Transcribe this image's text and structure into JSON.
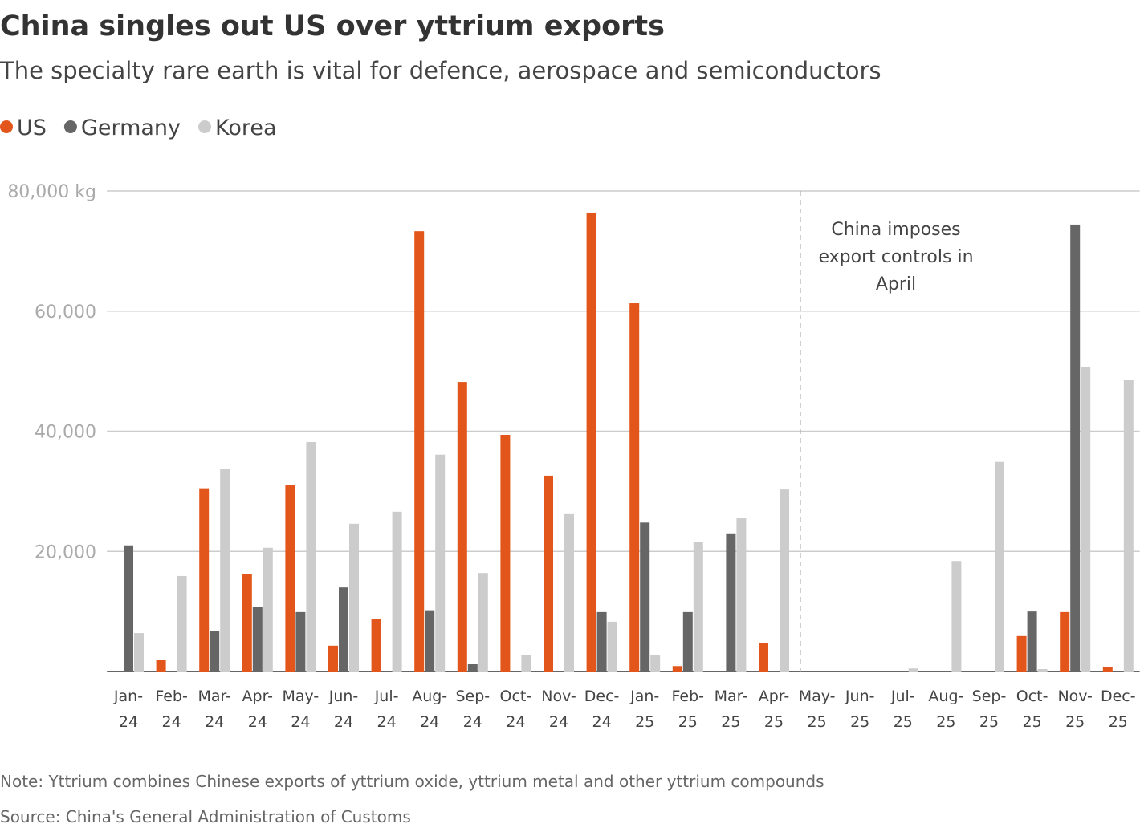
{
  "chart_data": {
    "type": "bar",
    "title": "China singles out US over yttrium exports",
    "subtitle": "The specialty rare earth is vital for defence, aerospace and semiconductors",
    "categories": [
      "Jan-24",
      "Feb-24",
      "Mar-24",
      "Apr-24",
      "May-24",
      "Jun-24",
      "Jul-24",
      "Aug-24",
      "Sep-24",
      "Oct-24",
      "Nov-24",
      "Dec-24",
      "Jan-25",
      "Feb-25",
      "Mar-25",
      "Apr-25",
      "May-25",
      "Jun-25",
      "Jul-25",
      "Aug-25",
      "Sep-25",
      "Oct-25",
      "Nov-25",
      "Dec-25"
    ],
    "series": [
      {
        "name": "US",
        "color": "#e3561b",
        "values": [
          0,
          2000,
          30500,
          16200,
          31000,
          4300,
          8700,
          73300,
          48200,
          39400,
          32600,
          76400,
          61300,
          900,
          0,
          4800,
          0,
          0,
          0,
          0,
          0,
          5900,
          9900,
          800
        ]
      },
      {
        "name": "Germany",
        "color": "#666666",
        "values": [
          21000,
          0,
          6800,
          10800,
          9900,
          14000,
          0,
          10200,
          1300,
          0,
          0,
          9900,
          24800,
          9900,
          23000,
          0,
          0,
          0,
          0,
          0,
          0,
          10000,
          74400,
          0
        ]
      },
      {
        "name": "Korea",
        "color": "#cccccc",
        "values": [
          6400,
          15900,
          33700,
          20600,
          38200,
          24600,
          26600,
          36100,
          16400,
          2700,
          26200,
          8300,
          2700,
          21500,
          25500,
          30300,
          0,
          0,
          500,
          18400,
          34900,
          400,
          50700,
          48600
        ]
      }
    ],
    "ylim": [
      0,
      80000
    ],
    "yticks": [
      {
        "value": 20000,
        "label": "20,000"
      },
      {
        "value": 40000,
        "label": "40,000"
      },
      {
        "value": 60000,
        "label": "60,000"
      },
      {
        "value": 80000,
        "label": "80,000 kg"
      }
    ],
    "grid": true,
    "annotation": [
      "China imposes",
      "export controls in",
      "April"
    ],
    "note": "Note: Yttrium combines Chinese exports of yttrium oxide, yttrium metal and other yttrium compounds",
    "source": "Source: China's General Administration of Customs"
  }
}
